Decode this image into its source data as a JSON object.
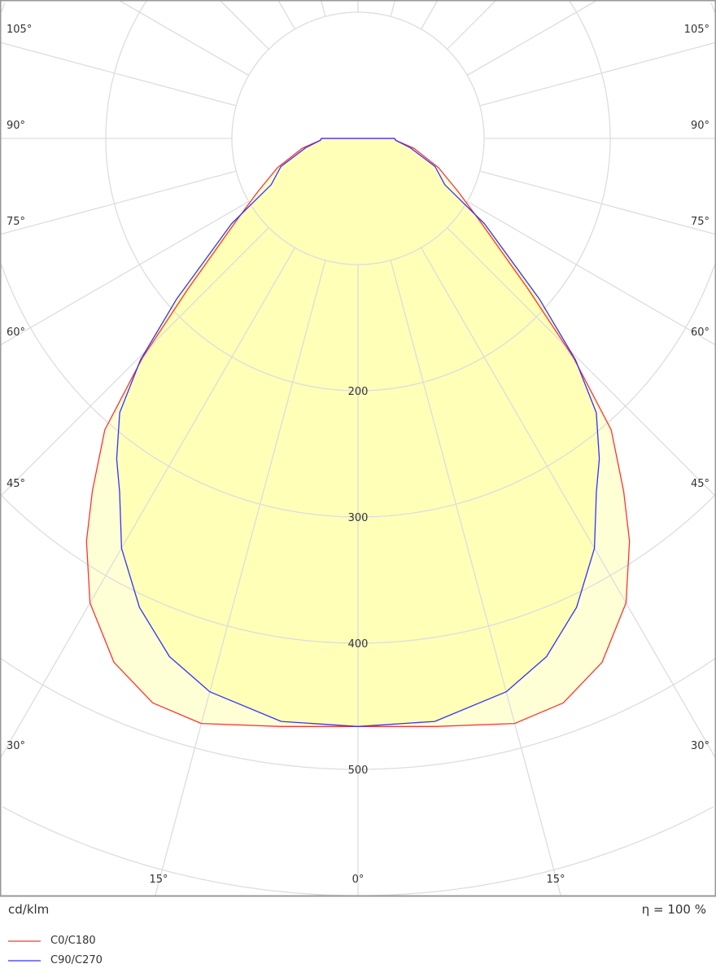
{
  "chart_data": {
    "type": "polar",
    "unit_label": "cd/klm",
    "efficiency_label": "η = 100 %",
    "radial_ticks": [
      200,
      300,
      400,
      500
    ],
    "radial_grid_step": 100,
    "angle_labels_left": [
      "105°",
      "90°",
      "75°",
      "60°",
      "45°",
      "30°"
    ],
    "angle_labels_right": [
      "105°",
      "90°",
      "75°",
      "60°",
      "45°",
      "30°"
    ],
    "angle_label_values_side": [
      105,
      90,
      75,
      60,
      45,
      30
    ],
    "angle_labels_bottom": [
      "15°",
      "0°",
      "15°"
    ],
    "angles": [
      0,
      7.5,
      15,
      20,
      25,
      30,
      34,
      37,
      41,
      44.5,
      48.5,
      56,
      62,
      70,
      80,
      87,
      90
    ],
    "series": [
      {
        "name": "C0/C180",
        "color": "#ff3333",
        "fill": "#ffffd6",
        "values": [
          466,
          470,
          480,
          476,
          458,
          425,
          385,
          350,
          306,
          244,
          180,
          116,
          90,
          68,
          45,
          30,
          29
        ]
      },
      {
        "name": "C90/C270",
        "color": "#3333ff",
        "fill": "#ffffb8",
        "values": [
          466,
          466,
          454,
          437,
          410,
          375,
          338,
          318,
          288,
          246,
          192,
          121,
          78,
          65,
          42,
          30,
          29
        ]
      }
    ]
  }
}
